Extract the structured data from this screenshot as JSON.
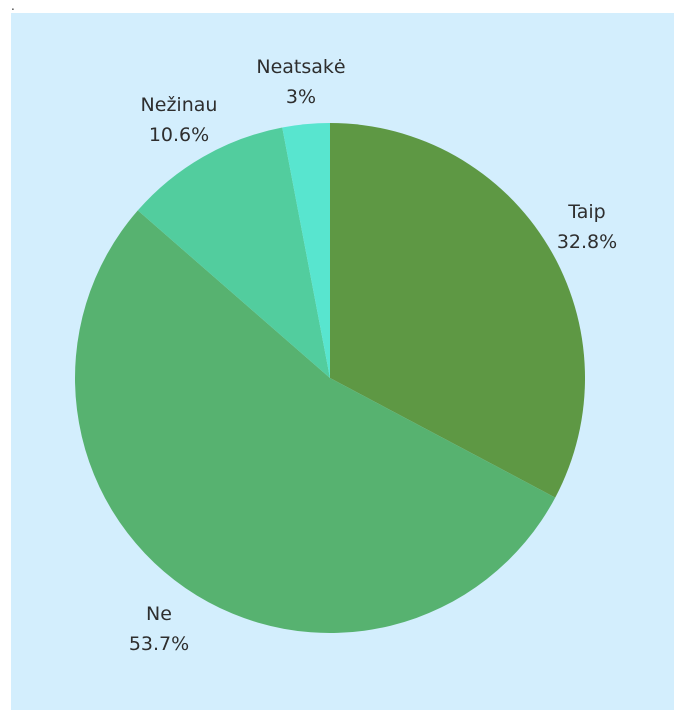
{
  "page": {
    "stray_mark": "."
  },
  "chart_data": {
    "type": "pie",
    "title": "",
    "slices": [
      {
        "label": "Taip",
        "value": 32.8,
        "value_label": "32.8%",
        "color": "#5e9844"
      },
      {
        "label": "Ne",
        "value": 53.7,
        "value_label": "53.7%",
        "color": "#57b270"
      },
      {
        "label": "Nežinau",
        "value": 10.6,
        "value_label": "10.6%",
        "color": "#52cd9e"
      },
      {
        "label": "Neatsakė",
        "value": 3.0,
        "value_label": "3%",
        "color": "#58e5cf"
      }
    ],
    "background_color": "#d3eefd",
    "legend": "none",
    "start_angle": "top, clockwise"
  }
}
